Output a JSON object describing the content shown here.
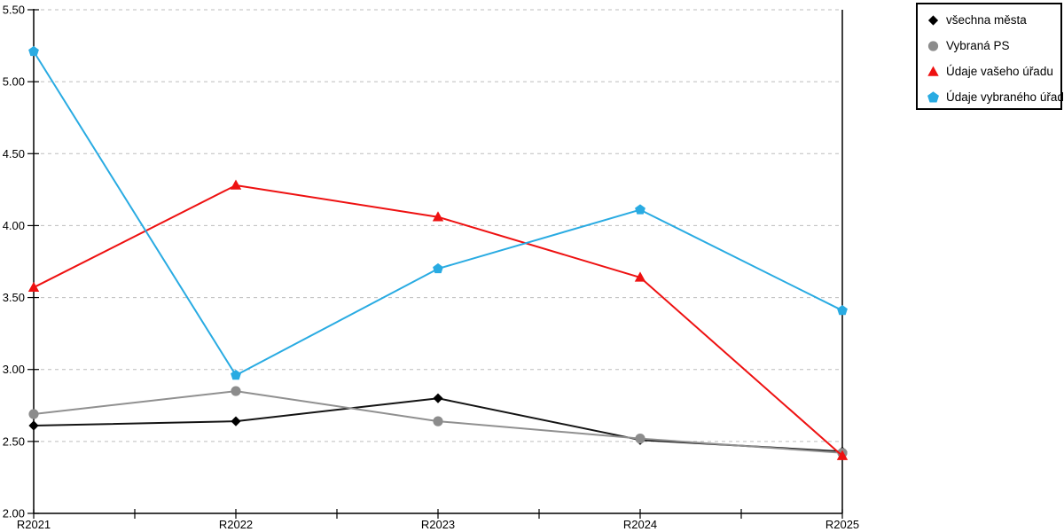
{
  "chart_data": {
    "type": "line",
    "title": "",
    "xlabel": "",
    "ylabel": "",
    "categories": [
      "R2021",
      "R2022",
      "R2023",
      "R2024",
      "R2025"
    ],
    "series": [
      {
        "name": "všechna města",
        "marker": "diamond",
        "color": "#141414",
        "marker_color": "#000000",
        "values": [
          2.61,
          2.64,
          2.8,
          2.51,
          2.43
        ]
      },
      {
        "name": "Vybraná PS",
        "marker": "circle",
        "color": "#909090",
        "marker_color": "#8c8c8c",
        "values": [
          2.69,
          2.85,
          2.64,
          2.52,
          2.42
        ]
      },
      {
        "name": "Údaje vašeho úřadu",
        "marker": "triangle",
        "color": "#ee1111",
        "marker_color": "#ee1111",
        "values": [
          3.57,
          4.28,
          4.06,
          3.64,
          2.4
        ]
      },
      {
        "name": "Údaje vybraného úřadu",
        "marker": "pentagon",
        "color": "#29abe2",
        "marker_color": "#29abe2",
        "values": [
          5.21,
          2.96,
          3.7,
          4.11,
          3.41
        ]
      }
    ],
    "ylim": [
      2.0,
      5.5
    ],
    "y_step": 0.5,
    "y_ticks": [
      "2.00",
      "2.50",
      "3.00",
      "3.50",
      "4.00",
      "4.50",
      "5.00",
      "5.50"
    ],
    "x_minor_ticks_between": 1,
    "grid": "horizontal-dashed",
    "legend_position": "top-right",
    "colors": {
      "grid": "#bdbdbd",
      "axis": "#000000",
      "background": "#ffffff"
    }
  }
}
